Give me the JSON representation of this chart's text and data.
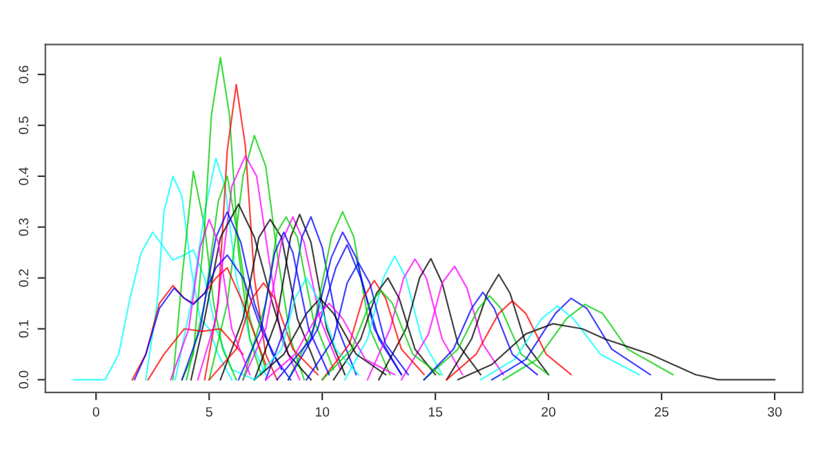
{
  "chart_data": {
    "type": "line",
    "xlim": [
      -2.24,
      31.24
    ],
    "ylim": [
      -0.025,
      0.659
    ],
    "xticks": [
      0,
      5,
      10,
      15,
      20,
      25,
      30
    ],
    "yticks": [
      {
        "value": 0,
        "label": "0.0"
      },
      0.1,
      0.2,
      0.3,
      0.4,
      0.5,
      0.6
    ],
    "grid": false,
    "legend": false,
    "marker": "none",
    "line_style": "solid",
    "series": [
      {
        "color": "#00ffff",
        "x": [
          -1,
          0.4,
          1,
          1.5,
          2,
          2.5,
          3,
          3.4,
          3.9,
          4.3,
          4.8,
          5.3,
          6,
          7
        ],
        "values": [
          0,
          0,
          0.05,
          0.16,
          0.25,
          0.29,
          0.26,
          0.235,
          0.245,
          0.255,
          0.2,
          0.1,
          0.02,
          0
        ]
      },
      {
        "color": "#00ffff",
        "x": [
          2.2,
          2.7,
          3.0,
          3.4,
          3.8,
          4.2,
          4.6,
          5.0,
          5.4,
          6
        ],
        "values": [
          0,
          0.15,
          0.33,
          0.4,
          0.36,
          0.22,
          0.12,
          0.1,
          0.05,
          0
        ]
      },
      {
        "color": "#00cd00",
        "x": [
          3.4,
          3.8,
          4.3,
          4.8,
          5.2,
          5.6,
          6.2
        ],
        "values": [
          0,
          0.2,
          0.41,
          0.3,
          0.15,
          0.06,
          0
        ]
      },
      {
        "color": "#00ffff",
        "x": [
          3.5,
          4.2,
          4.8,
          5.3,
          5.7,
          6.2,
          6.8,
          7.5
        ],
        "values": [
          0,
          0.15,
          0.33,
          0.435,
          0.38,
          0.2,
          0.08,
          0.01
        ]
      },
      {
        "color": "#00cd00",
        "x": [
          3.8,
          4.3,
          4.8,
          5.1,
          5.5,
          5.9,
          6.3,
          6.8,
          7.3
        ],
        "values": [
          0,
          0.05,
          0.3,
          0.52,
          0.633,
          0.52,
          0.25,
          0.08,
          0.01
        ]
      },
      {
        "color": "#ff0000",
        "x": [
          4.8,
          5.4,
          5.8,
          6.2,
          6.6,
          7.0,
          7.5,
          8
        ],
        "values": [
          0,
          0.15,
          0.45,
          0.58,
          0.46,
          0.2,
          0.05,
          0
        ]
      },
      {
        "color": "#00cd00",
        "x": [
          5,
          5.8,
          6.5,
          7.0,
          7.5,
          8.0,
          8.6,
          9.2
        ],
        "values": [
          0,
          0.15,
          0.4,
          0.48,
          0.42,
          0.25,
          0.08,
          0
        ]
      },
      {
        "color": "#ff00ff",
        "x": [
          4.5,
          5.3,
          6.0,
          6.6,
          7.1,
          7.6,
          8.2,
          9
        ],
        "values": [
          0,
          0.12,
          0.38,
          0.44,
          0.4,
          0.25,
          0.08,
          0
        ]
      },
      {
        "color": "#00cd00",
        "x": [
          4,
          4.8,
          5.4,
          5.8,
          6.2,
          6.8,
          7.5
        ],
        "values": [
          0,
          0.15,
          0.35,
          0.4,
          0.3,
          0.12,
          0.02
        ]
      },
      {
        "color": "#000000",
        "x": [
          4.2,
          4.8,
          5.5,
          6.3,
          7,
          7.8,
          8.5,
          9.5
        ],
        "values": [
          0,
          0.12,
          0.28,
          0.345,
          0.28,
          0.15,
          0.05,
          0
        ]
      },
      {
        "color": "#0000ff",
        "x": [
          3.8,
          4.6,
          5.3,
          5.8,
          6.4,
          7,
          7.8,
          8.6
        ],
        "values": [
          0,
          0.1,
          0.28,
          0.33,
          0.27,
          0.15,
          0.05,
          0
        ]
      },
      {
        "color": "#ff0000",
        "x": [
          1.6,
          2.2,
          2.8,
          3.4,
          3.9,
          4.3,
          4.8,
          5.3,
          5.8,
          6.5,
          7.5
        ],
        "values": [
          0,
          0.05,
          0.15,
          0.185,
          0.16,
          0.15,
          0.17,
          0.2,
          0.22,
          0.15,
          0.03
        ]
      },
      {
        "color": "#0000ff",
        "x": [
          1.7,
          2.2,
          2.8,
          3.45,
          3.9,
          4.3,
          4.8,
          5.3,
          5.8,
          6.5,
          7.3,
          8.2
        ],
        "values": [
          0,
          0.05,
          0.14,
          0.18,
          0.16,
          0.148,
          0.17,
          0.22,
          0.245,
          0.2,
          0.1,
          0.02
        ]
      },
      {
        "color": "#ff0000",
        "x": [
          2.3,
          3.0,
          3.9,
          4.7,
          5.5,
          6.5
        ],
        "values": [
          0,
          0.05,
          0.1,
          0.095,
          0.1,
          0.05
        ]
      },
      {
        "color": "#000000",
        "x": [
          5.5,
          6.5,
          7.2,
          7.7,
          8.2,
          8.9,
          9.8
        ],
        "values": [
          0,
          0.12,
          0.28,
          0.315,
          0.28,
          0.12,
          0.02
        ]
      },
      {
        "color": "#ff00ff",
        "x": [
          6.5,
          7.5,
          8.2,
          8.7,
          9.2,
          9.9,
          10.8
        ],
        "values": [
          0,
          0.1,
          0.27,
          0.32,
          0.27,
          0.12,
          0.02
        ]
      },
      {
        "color": "#000000",
        "x": [
          7,
          8,
          8.6,
          9.0,
          9.5,
          10.2,
          11
        ],
        "values": [
          0,
          0.12,
          0.28,
          0.325,
          0.27,
          0.1,
          0.01
        ]
      },
      {
        "color": "#0000ff",
        "x": [
          7.5,
          8.5,
          9.1,
          9.5,
          10,
          10.7,
          11.5
        ],
        "values": [
          0,
          0.12,
          0.28,
          0.32,
          0.26,
          0.1,
          0.01
        ]
      },
      {
        "color": "#00cd00",
        "x": [
          6.5,
          7.5,
          8,
          8.4,
          8.9,
          9.6,
          10.5
        ],
        "values": [
          0,
          0.15,
          0.29,
          0.32,
          0.28,
          0.12,
          0.02
        ]
      },
      {
        "color": "#00cd00",
        "x": [
          8.5,
          9.6,
          10.4,
          10.9,
          11.4,
          12.1,
          13
        ],
        "values": [
          0,
          0.1,
          0.28,
          0.33,
          0.28,
          0.1,
          0.01
        ]
      },
      {
        "color": "#0000ff",
        "x": [
          8,
          9.5,
          10.4,
          10.9,
          11.5,
          12.3,
          13.5
        ],
        "values": [
          0,
          0.08,
          0.24,
          0.29,
          0.24,
          0.1,
          0.01
        ]
      },
      {
        "color": "#0000ff",
        "x": [
          8.5,
          9.8,
          10.6,
          11.1,
          11.7,
          12.5,
          13.5
        ],
        "values": [
          0,
          0.1,
          0.22,
          0.265,
          0.2,
          0.08,
          0.01
        ]
      },
      {
        "color": "#00ffff",
        "x": [
          11,
          12,
          12.7,
          13.2,
          13.7,
          14.4,
          15.3
        ],
        "values": [
          0,
          0.08,
          0.2,
          0.243,
          0.2,
          0.08,
          0.01
        ]
      },
      {
        "color": "#ff00ff",
        "x": [
          12,
          13,
          13.6,
          14.1,
          14.6,
          15.3,
          16.2
        ],
        "values": [
          0,
          0.1,
          0.2,
          0.237,
          0.2,
          0.08,
          0.01
        ]
      },
      {
        "color": "#000000",
        "x": [
          12.5,
          13.7,
          14.3,
          14.8,
          15.3,
          16,
          17
        ],
        "values": [
          0,
          0.1,
          0.2,
          0.238,
          0.19,
          0.07,
          0.01
        ]
      },
      {
        "color": "#ff00ff",
        "x": [
          13.5,
          14.7,
          15.3,
          15.85,
          16.4,
          17.1,
          18
        ],
        "values": [
          0,
          0.09,
          0.19,
          0.223,
          0.18,
          0.07,
          0.01
        ]
      },
      {
        "color": "#000000",
        "x": [
          15.5,
          16.6,
          17.3,
          17.8,
          18.3,
          19,
          20
        ],
        "values": [
          0,
          0.08,
          0.17,
          0.207,
          0.17,
          0.07,
          0.01
        ]
      },
      {
        "color": "#000000",
        "x": [
          10.5,
          11.7,
          12.4,
          12.9,
          13.4,
          14.1,
          15
        ],
        "values": [
          0,
          0.08,
          0.17,
          0.2,
          0.16,
          0.06,
          0.01
        ]
      },
      {
        "color": "#ff0000",
        "x": [
          10,
          11.2,
          11.8,
          12.3,
          12.8,
          13.5,
          14.5
        ],
        "values": [
          0,
          0.07,
          0.16,
          0.195,
          0.16,
          0.06,
          0.01
        ]
      },
      {
        "color": "#00cd00",
        "x": [
          14.5,
          16,
          16.9,
          17.4,
          17.9,
          18.8,
          20
        ],
        "values": [
          0,
          0.06,
          0.14,
          0.165,
          0.14,
          0.05,
          0.01
        ]
      },
      {
        "color": "#0000ff",
        "x": [
          17.5,
          19,
          20.3,
          21.0,
          21.7,
          22.8,
          24.5
        ],
        "values": [
          0,
          0.04,
          0.13,
          0.16,
          0.14,
          0.06,
          0.01
        ]
      },
      {
        "color": "#00cd00",
        "x": [
          18,
          19.5,
          20.8,
          21.6,
          22.4,
          23.5,
          25.5
        ],
        "values": [
          0,
          0.04,
          0.12,
          0.148,
          0.13,
          0.06,
          0.01
        ]
      },
      {
        "color": "#00ffff",
        "x": [
          17,
          18.5,
          19.7,
          20.4,
          21.1,
          22.3,
          24
        ],
        "values": [
          0,
          0.04,
          0.12,
          0.145,
          0.12,
          0.05,
          0.01
        ]
      },
      {
        "color": "#000000",
        "x": [
          16,
          17.5,
          19,
          20.2,
          21.5,
          22.5,
          23.5,
          24.5,
          25.5,
          26.5,
          27.5,
          30
        ],
        "values": [
          0,
          0.03,
          0.09,
          0.11,
          0.1,
          0.08,
          0.065,
          0.05,
          0.03,
          0.01,
          0,
          0
        ]
      },
      {
        "color": "#0000ff",
        "x": [
          14.5,
          15.8,
          16.6,
          17.1,
          17.6,
          18.4,
          19.5
        ],
        "values": [
          0,
          0.06,
          0.14,
          0.172,
          0.14,
          0.05,
          0.01
        ]
      },
      {
        "color": "#ff0000",
        "x": [
          15.5,
          16.8,
          17.8,
          18.4,
          19,
          19.9,
          21
        ],
        "values": [
          0,
          0.05,
          0.13,
          0.155,
          0.13,
          0.05,
          0.01
        ]
      },
      {
        "color": "#000000",
        "x": [
          7,
          8.3,
          9.3,
          9.9,
          10.5,
          11.5,
          12.8
        ],
        "values": [
          0,
          0.05,
          0.13,
          0.16,
          0.13,
          0.05,
          0.01
        ]
      },
      {
        "color": "#ff0000",
        "x": [
          5,
          6.2,
          6.9,
          7.4,
          7.9,
          8.7,
          9.8
        ],
        "values": [
          0,
          0.06,
          0.16,
          0.19,
          0.16,
          0.06,
          0.01
        ]
      },
      {
        "color": "#ff00ff",
        "x": [
          7.5,
          8.8,
          9.7,
          10.3,
          10.9,
          11.9,
          13.2
        ],
        "values": [
          0,
          0.05,
          0.12,
          0.15,
          0.12,
          0.04,
          0.01
        ]
      },
      {
        "color": "#00ffff",
        "x": [
          7,
          8.2,
          8.8,
          9.3,
          9.8,
          10.6,
          11.6
        ],
        "values": [
          0,
          0.06,
          0.16,
          0.2,
          0.16,
          0.06,
          0.01
        ]
      },
      {
        "color": "#00cd00",
        "x": [
          10,
          11.3,
          12.1,
          12.6,
          13.1,
          14,
          15.2
        ],
        "values": [
          0,
          0.06,
          0.15,
          0.175,
          0.15,
          0.05,
          0.01
        ]
      },
      {
        "color": "#0000ff",
        "x": [
          9.3,
          10.5,
          11.1,
          11.6,
          12.1,
          12.8,
          13.8
        ],
        "values": [
          0,
          0.08,
          0.19,
          0.23,
          0.19,
          0.07,
          0.01
        ]
      },
      {
        "color": "#0000ff",
        "x": [
          6.3,
          7.3,
          7.9,
          8.3,
          8.7,
          9.4,
          10.3
        ],
        "values": [
          0,
          0.1,
          0.25,
          0.29,
          0.25,
          0.1,
          0.01
        ]
      },
      {
        "color": "#ff00ff",
        "x": [
          3.3,
          4.1,
          4.6,
          5.0,
          5.4,
          6.0,
          6.8
        ],
        "values": [
          0,
          0.1,
          0.26,
          0.315,
          0.27,
          0.1,
          0.01
        ]
      }
    ]
  }
}
